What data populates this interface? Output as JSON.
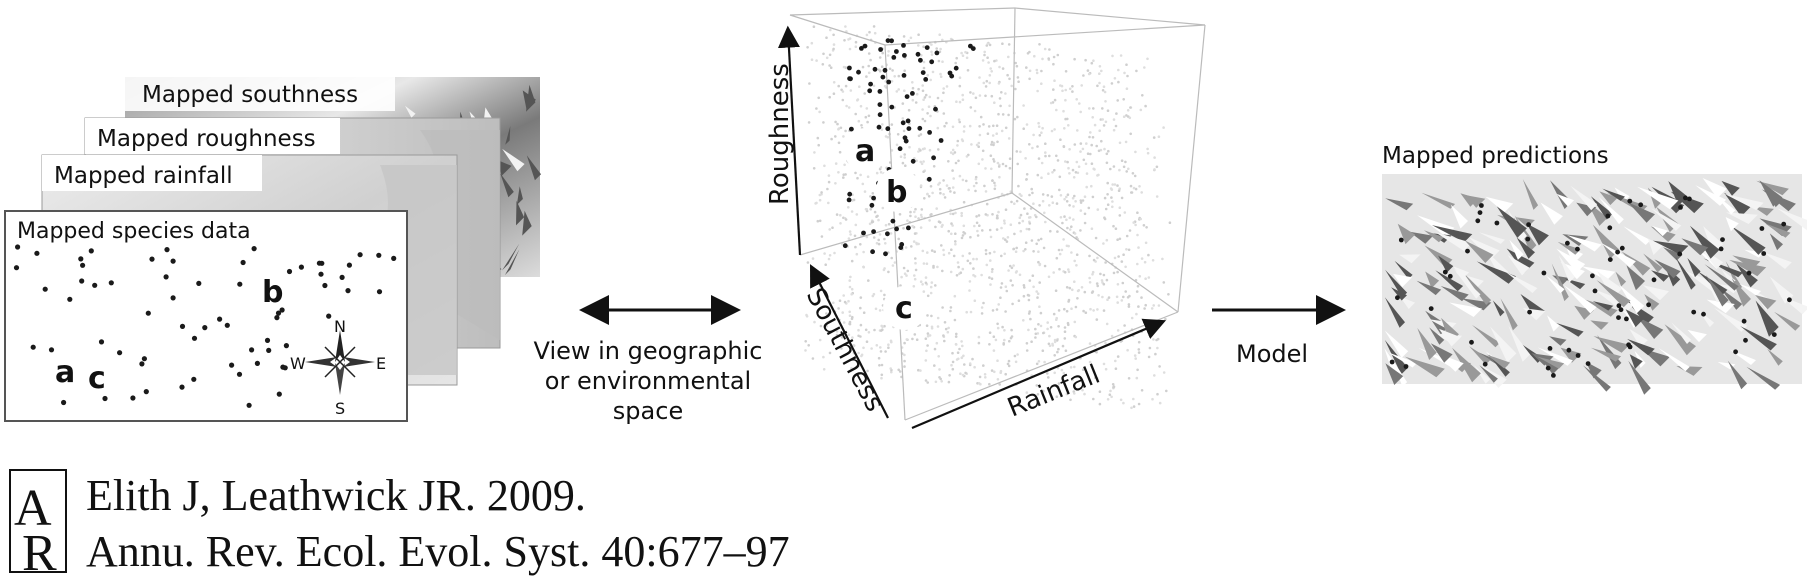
{
  "layers": {
    "southness": "Mapped southness",
    "roughness": "Mapped roughness",
    "rainfall": "Mapped rainfall",
    "species": "Mapped species data"
  },
  "sites": {
    "a": "a",
    "b": "b",
    "c": "c"
  },
  "compass": {
    "north": "N",
    "south": "S",
    "east": "E",
    "west": "W"
  },
  "view_caption": [
    "View in geographic",
    "or environmental",
    "space"
  ],
  "cube_axes": {
    "vertical": "Roughness",
    "depth": "Southness",
    "horizontal": "Rainfall"
  },
  "model_label": "Model",
  "predictions_title": "Mapped predictions",
  "citation": {
    "logo_text": "AR",
    "line1": "Elith J, Leathwick JR. 2009.",
    "line2": "Annu. Rev. Ecol. Evol. Syst. 40:677–97"
  },
  "colors": {
    "ink": "#111111",
    "cloud": "#cfcfcf",
    "terrain_dark": "#6a6a6a"
  }
}
